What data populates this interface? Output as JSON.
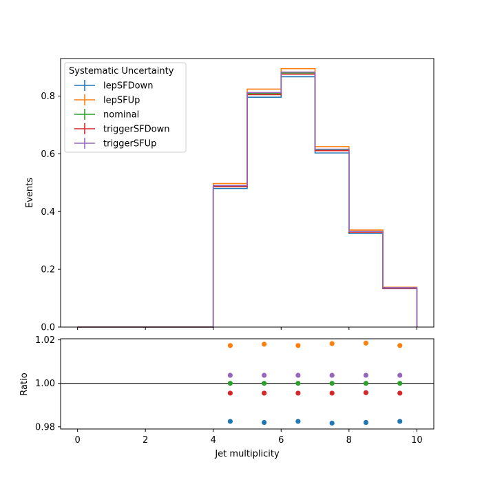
{
  "chart_data": [
    {
      "type": "line",
      "drawstyle": "steps",
      "xlabel": "",
      "ylabel": "Events",
      "xlim": [
        -0.5,
        10.5
      ],
      "ylim": [
        0,
        0.93
      ],
      "x_ticks": [
        0,
        2,
        4,
        6,
        8,
        10
      ],
      "y_ticks": [
        0.0,
        0.2,
        0.4,
        0.6,
        0.8
      ],
      "y_tick_labels": [
        "0.0",
        "0.2",
        "0.4",
        "0.6",
        "0.8"
      ],
      "bin_edges": [
        0,
        1,
        2,
        3,
        4,
        5,
        6,
        7,
        8,
        9,
        10
      ],
      "legend": {
        "title": "Systematic Uncertainty",
        "placement": "upper-left"
      },
      "series": [
        {
          "name": "lepSFDown",
          "color": "#1f77b4",
          "values": [
            0,
            0,
            0,
            0,
            0.48,
            0.796,
            0.867,
            0.603,
            0.324,
            0.133
          ]
        },
        {
          "name": "lepSFUp",
          "color": "#ff7f0e",
          "values": [
            0,
            0,
            0,
            0,
            0.497,
            0.824,
            0.895,
            0.625,
            0.336,
            0.138
          ]
        },
        {
          "name": "nominal",
          "color": "#2ca02c",
          "values": [
            0,
            0,
            0,
            0,
            0.488,
            0.809,
            0.88,
            0.614,
            0.33,
            0.135
          ]
        },
        {
          "name": "triggerSFDown",
          "color": "#d62728",
          "values": [
            0,
            0,
            0,
            0,
            0.486,
            0.805,
            0.876,
            0.611,
            0.329,
            0.134
          ]
        },
        {
          "name": "triggerSFUp",
          "color": "#9467bd",
          "values": [
            0,
            0,
            0,
            0,
            0.49,
            0.812,
            0.883,
            0.616,
            0.331,
            0.136
          ]
        }
      ]
    },
    {
      "type": "scatter",
      "xlabel": "Jet multiplicity",
      "ylabel": "Ratio",
      "xlim": [
        -0.5,
        10.5
      ],
      "ylim": [
        0.979,
        1.0205
      ],
      "x_ticks": [
        0,
        2,
        4,
        6,
        8,
        10
      ],
      "x_tick_labels": [
        "0",
        "2",
        "4",
        "6",
        "8",
        "10"
      ],
      "y_ticks": [
        0.98,
        1.0,
        1.02
      ],
      "y_tick_labels": [
        "0.98",
        "1.00",
        "1.02"
      ],
      "reference_line": 1.0,
      "x": [
        4.5,
        5.5,
        6.5,
        7.5,
        8.5,
        9.5
      ],
      "series": [
        {
          "name": "lepSFDown",
          "color": "#1f77b4",
          "values": [
            0.9825,
            0.982,
            0.9825,
            0.9817,
            0.982,
            0.9825
          ]
        },
        {
          "name": "lepSFUp",
          "color": "#ff7f0e",
          "values": [
            1.0174,
            1.018,
            1.0174,
            1.0183,
            1.0185,
            1.0174
          ]
        },
        {
          "name": "nominal",
          "color": "#2ca02c",
          "values": [
            1.0,
            1.0,
            1.0,
            1.0,
            1.0,
            1.0
          ]
        },
        {
          "name": "triggerSFDown",
          "color": "#d62728",
          "values": [
            0.9955,
            0.9955,
            0.9955,
            0.9955,
            0.9957,
            0.9955
          ]
        },
        {
          "name": "triggerSFUp",
          "color": "#9467bd",
          "values": [
            1.0037,
            1.0037,
            1.0037,
            1.0037,
            1.0037,
            1.0037
          ]
        }
      ]
    }
  ]
}
